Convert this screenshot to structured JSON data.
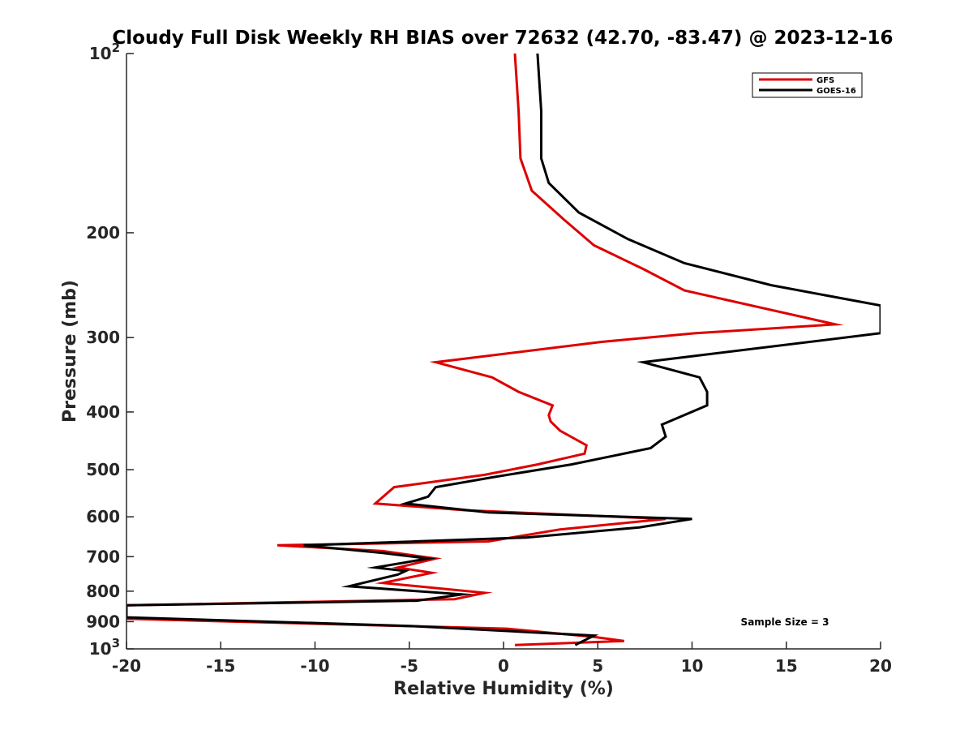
{
  "chart_data": {
    "type": "line",
    "title": "Cloudy Full Disk Weekly RH BIAS over 72632 (42.70, -83.47) @ 2023-12-16",
    "xlabel": "Relative Humidity (%)",
    "ylabel": "Pressure (mb)",
    "xlim": [
      -20,
      20
    ],
    "ylim": [
      1000,
      100
    ],
    "yscale": "log",
    "x_ticks": [
      -20,
      -15,
      -10,
      -5,
      0,
      5,
      10,
      15,
      20
    ],
    "x_tick_labels": [
      "-20",
      "-15",
      "-10",
      "-5",
      "0",
      "5",
      "10",
      "15",
      "20"
    ],
    "y_ticks": [
      100,
      200,
      300,
      400,
      500,
      600,
      700,
      800,
      900,
      1000
    ],
    "y_tick_labels": [
      {
        "base": "10",
        "exp": "2"
      },
      {
        "base": "200",
        "exp": ""
      },
      {
        "base": "300",
        "exp": ""
      },
      {
        "base": "400",
        "exp": ""
      },
      {
        "base": "500",
        "exp": ""
      },
      {
        "base": "600",
        "exp": ""
      },
      {
        "base": "700",
        "exp": ""
      },
      {
        "base": "800",
        "exp": ""
      },
      {
        "base": "900",
        "exp": ""
      },
      {
        "base": "10",
        "exp": "3"
      }
    ],
    "grid": false,
    "legend_position": "top-right",
    "annotation": "Sample Size = 3",
    "series": [
      {
        "name": "GFS",
        "color": "#dd0000",
        "points": [
          [
            0.6,
            100
          ],
          [
            0.8,
            125
          ],
          [
            0.9,
            150
          ],
          [
            1.5,
            170
          ],
          [
            3.2,
            190
          ],
          [
            4.8,
            210
          ],
          [
            7.4,
            230
          ],
          [
            9.6,
            250
          ],
          [
            17.6,
            285
          ],
          [
            10.2,
            295
          ],
          [
            5.2,
            305
          ],
          [
            -3.6,
            330
          ],
          [
            -0.6,
            350
          ],
          [
            0.8,
            370
          ],
          [
            2.6,
            390
          ],
          [
            2.4,
            405
          ],
          [
            2.5,
            415
          ],
          [
            3.0,
            430
          ],
          [
            4.4,
            455
          ],
          [
            4.3,
            470
          ],
          [
            1.8,
            490
          ],
          [
            -1.0,
            510
          ],
          [
            -5.8,
            535
          ],
          [
            -6.8,
            570
          ],
          [
            -2.0,
            585
          ],
          [
            8.6,
            605
          ],
          [
            3.0,
            630
          ],
          [
            -0.8,
            660
          ],
          [
            -12.0,
            670
          ],
          [
            -6.4,
            685
          ],
          [
            -3.6,
            705
          ],
          [
            -5.6,
            730
          ],
          [
            -3.8,
            745
          ],
          [
            -6.4,
            775
          ],
          [
            -1.0,
            805
          ],
          [
            -2.6,
            825
          ],
          [
            -20.0,
            845
          ],
          [
            -20.0,
            890
          ],
          [
            0.2,
            925
          ],
          [
            4.8,
            955
          ],
          [
            6.4,
            970
          ],
          [
            0.6,
            985
          ]
        ]
      },
      {
        "name": "GOES-16",
        "color": "#000000",
        "points": [
          [
            1.8,
            100
          ],
          [
            2.0,
            125
          ],
          [
            2.0,
            150
          ],
          [
            2.4,
            165
          ],
          [
            4.0,
            185
          ],
          [
            6.6,
            205
          ],
          [
            9.6,
            225
          ],
          [
            14.2,
            245
          ],
          [
            20.0,
            265
          ],
          [
            20.0,
            295
          ],
          [
            7.4,
            330
          ],
          [
            10.4,
            350
          ],
          [
            10.8,
            370
          ],
          [
            10.8,
            390
          ],
          [
            8.4,
            420
          ],
          [
            8.6,
            440
          ],
          [
            7.8,
            460
          ],
          [
            3.6,
            490
          ],
          [
            -0.6,
            515
          ],
          [
            -3.6,
            535
          ],
          [
            -4.0,
            555
          ],
          [
            -5.2,
            570
          ],
          [
            -0.8,
            590
          ],
          [
            10.0,
            605
          ],
          [
            7.2,
            625
          ],
          [
            1.2,
            650
          ],
          [
            -10.6,
            670
          ],
          [
            -6.4,
            690
          ],
          [
            -4.0,
            705
          ],
          [
            -6.8,
            730
          ],
          [
            -5.2,
            740
          ],
          [
            -5.6,
            750
          ],
          [
            -8.2,
            785
          ],
          [
            -2.2,
            810
          ],
          [
            -4.6,
            830
          ],
          [
            -20.0,
            845
          ],
          [
            -20.0,
            885
          ],
          [
            -5.0,
            915
          ],
          [
            4.8,
            950
          ],
          [
            3.8,
            985
          ]
        ]
      }
    ]
  }
}
